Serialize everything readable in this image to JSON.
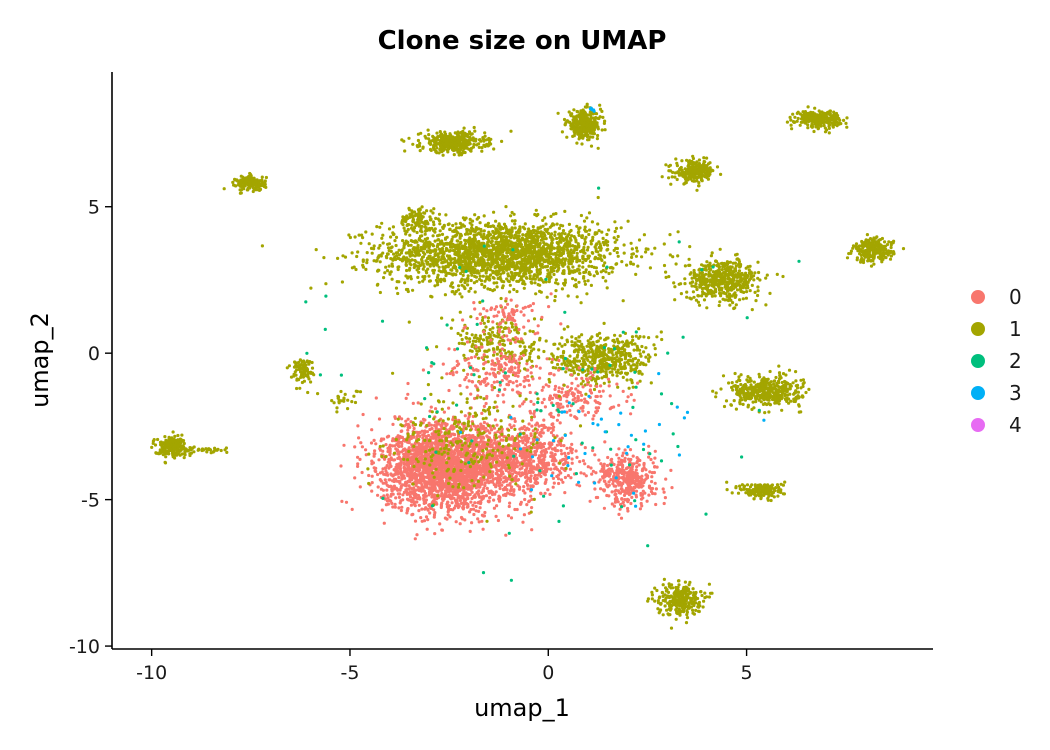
{
  "chart_data": {
    "type": "scatter",
    "title": "Clone size on UMAP",
    "xlabel": "umap_1",
    "ylabel": "umap_2",
    "xlim": [
      -11,
      9.7
    ],
    "ylim": [
      -10.1,
      9.6
    ],
    "x_ticks": [
      -10,
      -5,
      0,
      5
    ],
    "y_ticks": [
      -10,
      -5,
      0,
      5
    ],
    "grid": false,
    "legend_position": "right",
    "legend": [
      {
        "name": "0",
        "color": "#F8766D"
      },
      {
        "name": "1",
        "color": "#A3A500"
      },
      {
        "name": "2",
        "color": "#00BF7D"
      },
      {
        "name": "3",
        "color": "#00B0F6"
      },
      {
        "name": "4",
        "color": "#E76BF3"
      }
    ],
    "clusters": [
      {
        "group": "1",
        "cx": -1.2,
        "cy": 3.4,
        "sx": 2.4,
        "sy": 0.9,
        "n": 2200
      },
      {
        "group": "1",
        "cx": -3.3,
        "cy": 4.6,
        "sx": 0.35,
        "sy": 0.35,
        "n": 90
      },
      {
        "group": "1",
        "cx": -2.4,
        "cy": 7.2,
        "sx": 0.65,
        "sy": 0.28,
        "n": 380
      },
      {
        "group": "1",
        "cx": 0.9,
        "cy": 7.8,
        "sx": 0.35,
        "sy": 0.38,
        "n": 320
      },
      {
        "group": "1",
        "cx": 3.7,
        "cy": 6.2,
        "sx": 0.4,
        "sy": 0.3,
        "n": 240
      },
      {
        "group": "1",
        "cx": 6.8,
        "cy": 8.0,
        "sx": 0.45,
        "sy": 0.22,
        "n": 280
      },
      {
        "group": "1",
        "cx": -7.5,
        "cy": 5.8,
        "sx": 0.3,
        "sy": 0.2,
        "n": 170
      },
      {
        "group": "1",
        "cx": 8.2,
        "cy": 3.5,
        "sx": 0.4,
        "sy": 0.32,
        "n": 230
      },
      {
        "group": "1",
        "cx": 4.4,
        "cy": 2.5,
        "sx": 0.75,
        "sy": 0.55,
        "n": 500
      },
      {
        "group": "1",
        "cx": 5.5,
        "cy": -1.3,
        "sx": 0.7,
        "sy": 0.42,
        "n": 420
      },
      {
        "group": "1",
        "cx": 5.4,
        "cy": -4.7,
        "sx": 0.45,
        "sy": 0.22,
        "n": 170
      },
      {
        "group": "1",
        "cx": 3.3,
        "cy": -8.4,
        "sx": 0.45,
        "sy": 0.45,
        "n": 260
      },
      {
        "group": "1",
        "cx": -9.5,
        "cy": -3.2,
        "sx": 0.35,
        "sy": 0.28,
        "n": 190
      },
      {
        "group": "1",
        "cx": -8.6,
        "cy": -3.3,
        "sx": 0.45,
        "sy": 0.08,
        "n": 30
      },
      {
        "group": "1",
        "cx": -6.2,
        "cy": -0.6,
        "sx": 0.22,
        "sy": 0.35,
        "n": 90
      },
      {
        "group": "1",
        "cx": -5.2,
        "cy": -1.6,
        "sx": 0.4,
        "sy": 0.3,
        "n": 25
      },
      {
        "group": "1",
        "cx": 1.4,
        "cy": -0.2,
        "sx": 1.0,
        "sy": 0.7,
        "n": 480
      },
      {
        "group": "1",
        "cx": -1.2,
        "cy": 0.3,
        "sx": 1.0,
        "sy": 0.8,
        "n": 220
      },
      {
        "group": "0",
        "cx": -2.6,
        "cy": -3.9,
        "sx": 1.3,
        "sy": 1.2,
        "n": 2400
      },
      {
        "group": "0",
        "cx": -0.6,
        "cy": -3.6,
        "sx": 1.0,
        "sy": 1.0,
        "n": 700
      },
      {
        "group": "0",
        "cx": 2.0,
        "cy": -4.3,
        "sx": 0.6,
        "sy": 0.7,
        "n": 380
      },
      {
        "group": "0",
        "cx": 0.7,
        "cy": -1.5,
        "sx": 0.9,
        "sy": 0.7,
        "n": 160
      },
      {
        "group": "0",
        "cx": -1.3,
        "cy": -0.6,
        "sx": 1.0,
        "sy": 0.8,
        "n": 180
      },
      {
        "group": "0",
        "cx": -1.0,
        "cy": 1.2,
        "sx": 0.8,
        "sy": 0.6,
        "n": 80
      },
      {
        "group": "1",
        "cx": -2.0,
        "cy": -3.0,
        "sx": 1.6,
        "sy": 1.3,
        "n": 260
      },
      {
        "group": "2",
        "cx": 0.0,
        "cy": -1.5,
        "sx": 4.5,
        "sy": 4.8,
        "n": 95
      },
      {
        "group": "3",
        "cx": 1.5,
        "cy": -2.5,
        "sx": 2.5,
        "sy": 2.2,
        "n": 40
      },
      {
        "group": "3",
        "cx": 1.1,
        "cy": 8.3,
        "sx": 0.08,
        "sy": 0.08,
        "n": 6
      }
    ]
  }
}
